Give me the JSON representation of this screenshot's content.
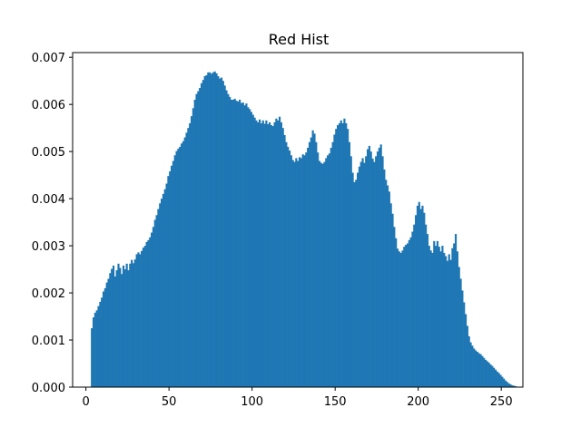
{
  "chart_data": {
    "type": "bar",
    "title": "Red Hist",
    "xlabel": "",
    "ylabel": "",
    "x_ticks": [
      "0",
      "50",
      "100",
      "150",
      "200",
      "250"
    ],
    "y_ticks": [
      "0.000",
      "0.001",
      "0.002",
      "0.003",
      "0.004",
      "0.005",
      "0.006",
      "0.007"
    ],
    "xlim": [
      -8,
      263
    ],
    "ylim": [
      0,
      0.0071
    ],
    "bin_start": 3,
    "bin_width": 1,
    "bar_color": "#1f77b4",
    "grid": false,
    "series": [
      {
        "values": [
          0.00125,
          0.00148,
          0.00158,
          0.00163,
          0.00172,
          0.00181,
          0.0019,
          0.00203,
          0.0021,
          0.00222,
          0.0023,
          0.00242,
          0.00251,
          0.00258,
          0.00235,
          0.00248,
          0.00262,
          0.00253,
          0.0024,
          0.00258,
          0.0025,
          0.00262,
          0.00248,
          0.00262,
          0.0027,
          0.00263,
          0.00271,
          0.00282,
          0.00286,
          0.00282,
          0.00289,
          0.00296,
          0.003,
          0.00308,
          0.00312,
          0.00318,
          0.00328,
          0.0034,
          0.00355,
          0.00365,
          0.00378,
          0.0039,
          0.004,
          0.0041,
          0.0042,
          0.00432,
          0.00448,
          0.00458,
          0.0047,
          0.0048,
          0.00492,
          0.00501,
          0.00506,
          0.0051,
          0.00517,
          0.00522,
          0.0053,
          0.0054,
          0.0055,
          0.0056,
          0.00575,
          0.00592,
          0.0061,
          0.00622,
          0.00628,
          0.00635,
          0.00645,
          0.00652,
          0.0066,
          0.00662,
          0.00668,
          0.00668,
          0.00665,
          0.00668,
          0.0067,
          0.00666,
          0.0066,
          0.00655,
          0.00657,
          0.0065,
          0.0064,
          0.0063,
          0.00622,
          0.00616,
          0.0061,
          0.0061,
          0.00612,
          0.00608,
          0.00606,
          0.0061,
          0.00603,
          0.00604,
          0.00598,
          0.00602,
          0.00594,
          0.0059,
          0.00584,
          0.00578,
          0.00572,
          0.00566,
          0.00562,
          0.00568,
          0.0056,
          0.00566,
          0.00559,
          0.00566,
          0.00558,
          0.00562,
          0.00556,
          0.00554,
          0.00562,
          0.0057,
          0.00566,
          0.00574,
          0.00562,
          0.0055,
          0.00535,
          0.0052,
          0.0051,
          0.00502,
          0.00492,
          0.00482,
          0.00478,
          0.00486,
          0.0048,
          0.00488,
          0.00486,
          0.00494,
          0.00492,
          0.00498,
          0.00508,
          0.0052,
          0.0053,
          0.00545,
          0.00538,
          0.0052,
          0.00498,
          0.0048,
          0.00476,
          0.00474,
          0.00478,
          0.00486,
          0.00492,
          0.00496,
          0.00508,
          0.0052,
          0.00536,
          0.00548,
          0.00556,
          0.0056,
          0.00566,
          0.0056,
          0.0057,
          0.0056,
          0.00548,
          0.0052,
          0.0049,
          0.00455,
          0.00435,
          0.0044,
          0.00455,
          0.00468,
          0.00478,
          0.00486,
          0.00476,
          0.0049,
          0.00505,
          0.00512,
          0.005,
          0.00485,
          0.00478,
          0.0049,
          0.005,
          0.00508,
          0.00515,
          0.0049,
          0.00462,
          0.0044,
          0.00428,
          0.00415,
          0.0039,
          0.00368,
          0.0034,
          0.00316,
          0.00294,
          0.00288,
          0.00285,
          0.0029,
          0.00298,
          0.00302,
          0.00305,
          0.00312,
          0.00318,
          0.0033,
          0.00345,
          0.00365,
          0.00385,
          0.00393,
          0.00378,
          0.00385,
          0.0037,
          0.00345,
          0.00325,
          0.003,
          0.0029,
          0.00285,
          0.0031,
          0.003,
          0.0031,
          0.00298,
          0.00288,
          0.003,
          0.00285,
          0.00278,
          0.00268,
          0.00282,
          0.0027,
          0.00295,
          0.00305,
          0.00325,
          0.00288,
          0.00255,
          0.0023,
          0.00205,
          0.0018,
          0.00155,
          0.0013,
          0.00108,
          0.00095,
          0.00088,
          0.00082,
          0.00078,
          0.00075,
          0.00072,
          0.0007,
          0.00066,
          0.00062,
          0.00058,
          0.00055,
          0.00052,
          0.00048,
          0.00045,
          0.00041,
          0.00037,
          0.00033,
          0.0003,
          0.00026,
          0.00022,
          0.00018,
          0.00014,
          0.00011,
          8e-05,
          6e-05,
          4e-05,
          3e-05,
          2e-05,
          1e-05,
          0.0
        ]
      }
    ]
  }
}
